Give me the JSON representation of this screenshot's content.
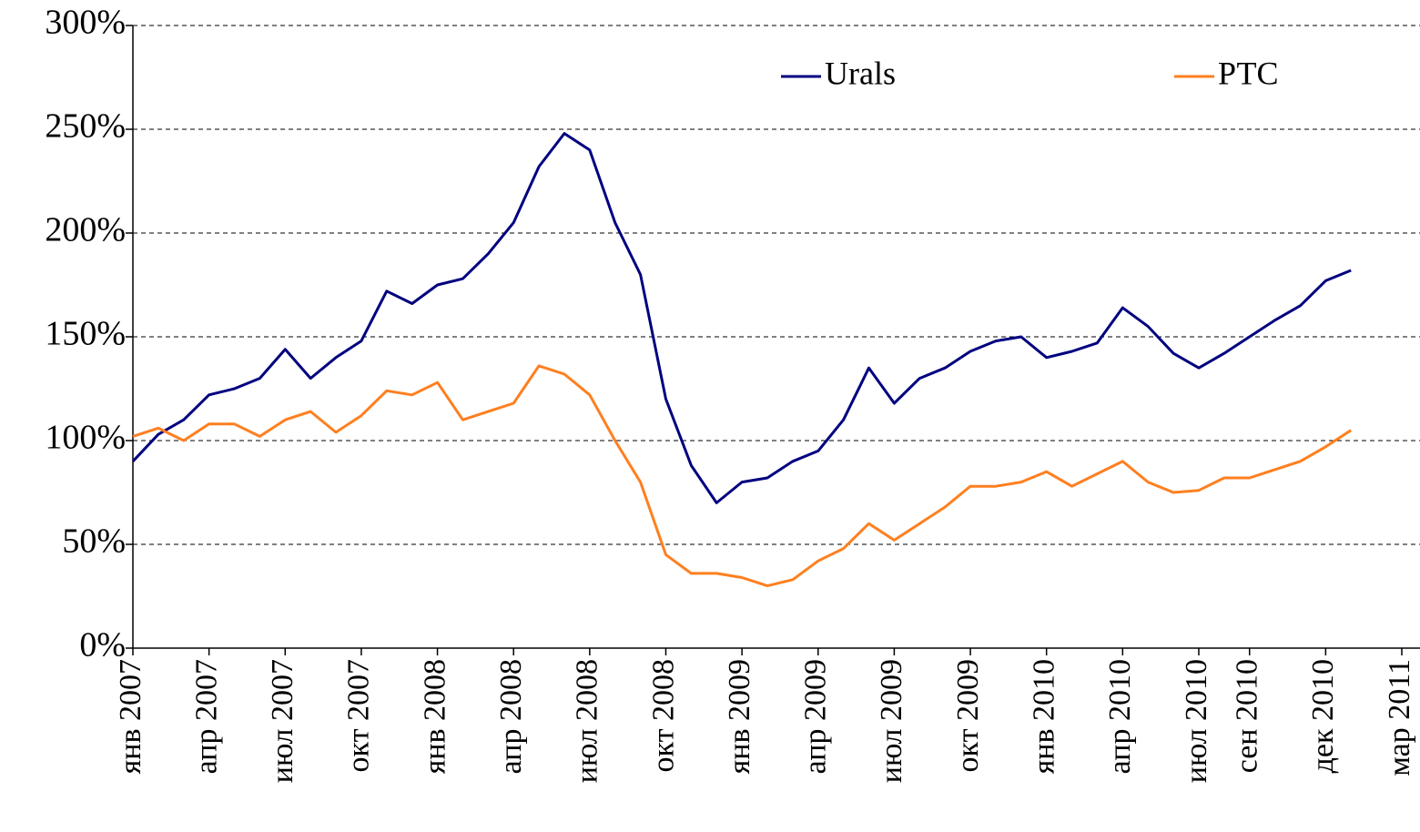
{
  "chart_data": {
    "type": "line",
    "x": [
      "2007-01",
      "2007-02",
      "2007-03",
      "2007-04",
      "2007-05",
      "2007-06",
      "2007-07",
      "2007-08",
      "2007-09",
      "2007-10",
      "2007-11",
      "2007-12",
      "2008-01",
      "2008-02",
      "2008-03",
      "2008-04",
      "2008-05",
      "2008-06",
      "2008-07",
      "2008-08",
      "2008-09",
      "2008-10",
      "2008-11",
      "2008-12",
      "2009-01",
      "2009-02",
      "2009-03",
      "2009-04",
      "2009-05",
      "2009-06",
      "2009-07",
      "2009-08",
      "2009-09",
      "2009-10",
      "2009-11",
      "2009-12",
      "2010-01",
      "2010-02",
      "2010-03",
      "2010-04",
      "2010-05",
      "2010-06",
      "2010-07",
      "2010-08",
      "2010-09",
      "2010-10",
      "2010-11",
      "2010-12",
      "2011-01"
    ],
    "series": [
      {
        "name": "Urals",
        "color": "#000080",
        "values": [
          90,
          103,
          110,
          122,
          125,
          130,
          144,
          130,
          140,
          148,
          172,
          166,
          175,
          178,
          190,
          205,
          232,
          248,
          240,
          205,
          180,
          120,
          88,
          70,
          80,
          82,
          90,
          95,
          110,
          135,
          118,
          130,
          135,
          143,
          148,
          150,
          140,
          143,
          147,
          164,
          155,
          142,
          135,
          142,
          150,
          158,
          165,
          177,
          182
        ]
      },
      {
        "name": "РТС",
        "color": "#ff7f1f",
        "values": [
          102,
          106,
          100,
          108,
          108,
          102,
          110,
          114,
          104,
          112,
          124,
          122,
          128,
          110,
          114,
          118,
          136,
          132,
          122,
          100,
          80,
          45,
          36,
          36,
          34,
          30,
          33,
          42,
          48,
          60,
          52,
          60,
          68,
          78,
          78,
          80,
          85,
          78,
          84,
          90,
          80,
          75,
          76,
          82,
          82,
          86,
          90,
          97,
          105
        ]
      }
    ],
    "xlim": [
      "2007-01",
      "2011-03"
    ],
    "xticks": [
      {
        "value": "2007-01",
        "label": "янв 2007"
      },
      {
        "value": "2007-04",
        "label": "апр 2007"
      },
      {
        "value": "2007-07",
        "label": "июл 2007"
      },
      {
        "value": "2007-10",
        "label": "окт 2007"
      },
      {
        "value": "2008-01",
        "label": "янв 2008"
      },
      {
        "value": "2008-04",
        "label": "апр 2008"
      },
      {
        "value": "2008-07",
        "label": "июл 2008"
      },
      {
        "value": "2008-10",
        "label": "окт 2008"
      },
      {
        "value": "2009-01",
        "label": "янв 2009"
      },
      {
        "value": "2009-04",
        "label": "апр 2009"
      },
      {
        "value": "2009-07",
        "label": "июл 2009"
      },
      {
        "value": "2009-10",
        "label": "окт 2009"
      },
      {
        "value": "2010-01",
        "label": "янв 2010"
      },
      {
        "value": "2010-04",
        "label": "апр 2010"
      },
      {
        "value": "2010-07",
        "label": "июл 2010"
      },
      {
        "value": "2010-09",
        "label": "сен 2010"
      },
      {
        "value": "2010-12",
        "label": "дек 2010"
      },
      {
        "value": "2011-03",
        "label": "мар 2011"
      }
    ],
    "ylim": [
      0,
      300
    ],
    "yticks": [
      {
        "value": 0,
        "label": "0%"
      },
      {
        "value": 50,
        "label": "50%"
      },
      {
        "value": 100,
        "label": "100%"
      },
      {
        "value": 150,
        "label": "150%"
      },
      {
        "value": 200,
        "label": "200%"
      },
      {
        "value": 250,
        "label": "250%"
      },
      {
        "value": 300,
        "label": "300%"
      }
    ],
    "grid": true,
    "legend": "top"
  }
}
